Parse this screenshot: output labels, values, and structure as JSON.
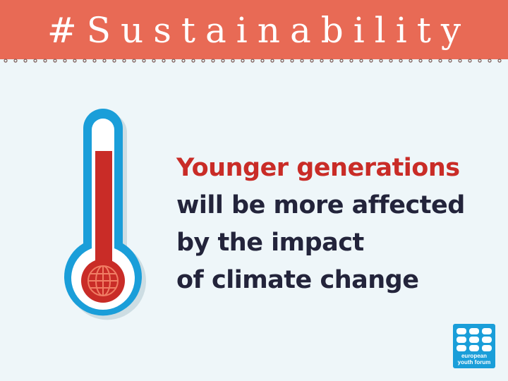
{
  "header": {
    "title": "#Sustainability",
    "background_color": "#e86a55",
    "text_color": "#ffffff"
  },
  "thermometer": {
    "icon": "thermometer-icon",
    "globe_icon": "globe-icon",
    "outline_color": "#1a9ed9",
    "mercury_color": "#c92c27"
  },
  "message": {
    "line1": "Younger generations",
    "line2": "will be more affected",
    "line3": "by the impact",
    "line4": "of climate change",
    "highlight_color": "#c92c27",
    "text_color": "#23243b"
  },
  "logo": {
    "line1": "european",
    "line2": "youth forum",
    "background_color": "#1a9ed9"
  },
  "page": {
    "background_color": "#eef6f9"
  }
}
